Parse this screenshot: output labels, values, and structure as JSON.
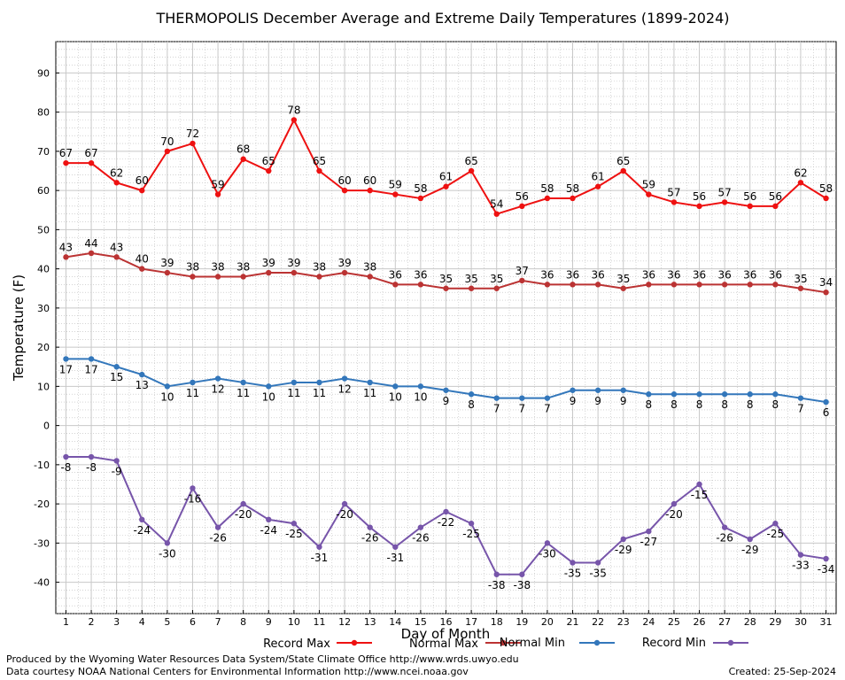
{
  "chart_data": {
    "type": "line",
    "title": "THERMOPOLIS December Average and Extreme Daily Temperatures (1899-2024)",
    "xlabel": "Day of Month",
    "ylabel": "Temperature (F)",
    "xlim": [
      0.6,
      31.4
    ],
    "ylim": [
      -48,
      98
    ],
    "y_ticks": [
      -40,
      -30,
      -20,
      -10,
      0,
      10,
      20,
      30,
      40,
      50,
      60,
      70,
      80,
      90
    ],
    "x": [
      1,
      2,
      3,
      4,
      5,
      6,
      7,
      8,
      9,
      10,
      11,
      12,
      13,
      14,
      15,
      16,
      17,
      18,
      19,
      20,
      21,
      22,
      23,
      24,
      25,
      26,
      27,
      28,
      29,
      30,
      31
    ],
    "grid": true,
    "legend_position": "bottom",
    "series": [
      {
        "name": "Record Max",
        "color": "#ee1111",
        "label_pos": "above",
        "values": [
          67,
          67,
          62,
          60,
          70,
          72,
          59,
          68,
          65,
          78,
          65,
          60,
          60,
          59,
          58,
          61,
          65,
          54,
          56,
          58,
          58,
          61,
          65,
          59,
          57,
          56,
          57,
          56,
          56,
          62,
          58
        ]
      },
      {
        "name": "Normal Max",
        "color": "#bb3333",
        "label_pos": "above",
        "values": [
          43,
          44,
          43,
          40,
          39,
          38,
          38,
          38,
          39,
          39,
          38,
          39,
          38,
          36,
          36,
          35,
          35,
          35,
          37,
          36,
          36,
          36,
          35,
          36,
          36,
          36,
          36,
          36,
          36,
          35,
          34
        ]
      },
      {
        "name": "Normal Min",
        "color": "#3377bb",
        "label_pos": "below",
        "values": [
          17,
          17,
          15,
          13,
          10,
          11,
          12,
          11,
          10,
          11,
          11,
          12,
          11,
          10,
          10,
          9,
          8,
          7,
          7,
          7,
          9,
          9,
          9,
          8,
          8,
          8,
          8,
          8,
          8,
          7,
          6
        ]
      },
      {
        "name": "Record Min",
        "color": "#7755aa",
        "label_pos": "below",
        "values": [
          -8,
          -8,
          -9,
          -24,
          -30,
          -16,
          -26,
          -20,
          -24,
          -25,
          -31,
          -20,
          -26,
          -31,
          -26,
          -22,
          -25,
          -38,
          -38,
          -30,
          -35,
          -35,
          -29,
          -27,
          -20,
          -15,
          -26,
          -29,
          -25,
          -33,
          -34
        ]
      }
    ]
  },
  "footer": {
    "producer": "Produced by the Wyoming Water Resources Data System/State Climate Office http://www.wrds.uwyo.edu",
    "courtesy": "Data courtesy NOAA National Centers for Environmental Information http://www.ncei.noaa.gov",
    "created": "Created:  25-Sep-2024"
  }
}
